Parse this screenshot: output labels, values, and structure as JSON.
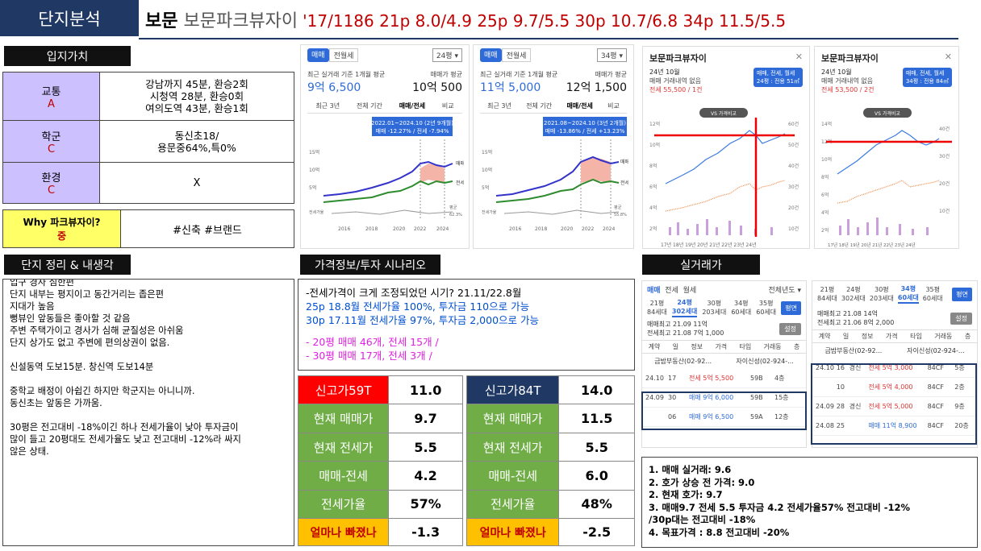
{
  "header": {
    "tag": "단지분석",
    "region": "보문",
    "complex": "보문파크뷰자이",
    "year_units": "'17/1186",
    "summary": "'17/1186 21p 8.0/4.9 25p 9.7/5.5 30p 10.7/6.8 34p 11.5/5.5"
  },
  "location": {
    "title": "입지가치",
    "rows": [
      {
        "label": "교통",
        "grade": "A",
        "lines": [
          "강남까지 45분, 환승2회",
          "시청역 28분, 환승0회",
          "여의도역 43분, 환승1회"
        ]
      },
      {
        "label": "학군",
        "grade": "C",
        "lines": [
          "동신초18/",
          "용문중64%,특0%"
        ]
      },
      {
        "label": "환경",
        "grade": "C",
        "lines": [
          "X"
        ]
      }
    ],
    "why": {
      "label": "Why 파크뷰자이?",
      "grade": "중",
      "value": "#신축 #브랜드"
    }
  },
  "notes": {
    "title": "단지 정리 & 내생각",
    "lines": [
      "입구 경사 심한편",
      "단지 내부는 평지이고 동간거리는 좁은편",
      "지대가 높음",
      "뻥뷰인 앞동들은 좋아할 것 같음",
      "주변 주택가이고 경사가 심해 균질성은 아쉬움",
      "단지 상가도 없고 주변에 편의상권이 없음.",
      "",
      "신설동역 도보15분. 창신역 도보14분",
      "",
      "중학교 배정이 아쉽긴 하지만 학군지는 아니니까.",
      "동신초는 앞동은 가까움.",
      "",
      "30평은 전고대비 -18%이긴 하나 전세가율이 낮아 투자금이",
      "많이 들고 20평대도 전세가율도 낮고 전고대비 -12%라 싸지",
      "않은 상태."
    ]
  },
  "price": {
    "title": "가격정보/투자 시나리오",
    "intro": "-전세가격이 크게 조정되었던 시기? 21.11/22.8월",
    "line25": "25p 18.8월 전세가율 100%, 투자금 110으로 가능",
    "line30": "30p 17.11월 전세가율 97%, 투자금 2,000으로 가능",
    "m20": "-   20평 매매 46개, 전세 15개 /",
    "m30": "-   30평 매매 17개, 전세 3개 /"
  },
  "table59": [
    {
      "label": "신고가59T",
      "value": "11.0"
    },
    {
      "label": "현재 매매가",
      "value": "9.7"
    },
    {
      "label": "현재 전세가",
      "value": "5.5"
    },
    {
      "label": "매매-전세",
      "value": "4.2"
    },
    {
      "label": "전세가율",
      "value": "57%"
    },
    {
      "label": "얼마나 빠졌나",
      "value": "-1.3"
    }
  ],
  "table84": [
    {
      "label": "신고가84T",
      "value": "14.0"
    },
    {
      "label": "현재 매매가",
      "value": "11.5"
    },
    {
      "label": "현재 전세가",
      "value": "5.5"
    },
    {
      "label": "매매-전세",
      "value": "6.0"
    },
    {
      "label": "전세가율",
      "value": "48%"
    },
    {
      "label": "얼마나 빠졌나",
      "value": "-2.5"
    }
  ],
  "colors": {
    "navy": "#1f3864",
    "green": "#70ad47",
    "red": "#ff0000",
    "yellow": "#ffc000",
    "purple": "#ccc0ff",
    "whyyellow": "#ffff66"
  },
  "chart1": {
    "tab1": "매매",
    "tab2": "전월세",
    "size": "24평",
    "avg_label": "최근 실거래 기준 1개월 평균",
    "price": "9억 6,500",
    "avg2": "매매가 평균",
    "price2": "10억 500",
    "tabs": [
      "최근 3년",
      "전체 기간",
      "매매/전세",
      "비교"
    ],
    "tip1": "2022.01~2024.10 (2년 9개월)",
    "tip2": "매매 -12.27% / 전세 -7.94%",
    "leg_a": "매매",
    "leg_b": "전세",
    "yticks": [
      "15억",
      "10억",
      "5억"
    ],
    "xticks": [
      "2016",
      "2018",
      "2020",
      "2022",
      "2024"
    ],
    "jeonse": "전세가율",
    "ratio_lbl": "평균",
    "ratio": "62.3%"
  },
  "chart2": {
    "tab1": "매매",
    "tab2": "전월세",
    "size": "34평",
    "avg_label": "최근 실거래 기준 1개월 평균",
    "price": "11억 5,000",
    "avg2": "매매가 평균",
    "price2": "12억 1,500",
    "tabs": [
      "최근 3년",
      "전체 기간",
      "매매/전세",
      "비교"
    ],
    "tip1": "2021.08~2024.10 (3년 2개월)",
    "tip2": "매매 -13.86% / 전세 +13.23%",
    "leg_a": "매매",
    "leg_b": "전세",
    "yticks": [
      "15억",
      "10억",
      "5억"
    ],
    "xticks": [
      "2016",
      "2018",
      "2020",
      "2022",
      "2024"
    ],
    "jeonse": "전세가율",
    "ratio_lbl": "평균",
    "ratio": "55.8%"
  },
  "chart3": {
    "name": "보문파크뷰자이",
    "month": "24년 10월",
    "sub": "매매 거래내역 없음",
    "jeonse": "전세 55,500 / 1건",
    "pill1": "매매, 전세, 월세",
    "pill2": "24평 : 전용 51㎡",
    "vs": "VS 가격비교",
    "yl": [
      "12억",
      "10억",
      "8억",
      "6억",
      "4억",
      "2억"
    ],
    "yr": [
      "60건",
      "50건",
      "40건",
      "30건",
      "20건",
      "10건"
    ],
    "xt": "17년 18년 19년 20년 21년 22년 23년 24년"
  },
  "chart4": {
    "name": "보문파크뷰자이",
    "month": "24년 10월",
    "sub": "매매 거래내역 없음",
    "jeonse": "전세 53,500 / 2건",
    "pill1": "매매, 전세, 월세",
    "pill2": "34평 : 전용 84㎡",
    "vs": "VS 가격비교",
    "yl": [
      "14억",
      "12억",
      "10억",
      "8억",
      "6억",
      "4억",
      "2억"
    ],
    "yr": [
      "40건",
      "30건",
      "20건",
      "10건"
    ],
    "xt": "17년 18년 19년 20년 21년 22년 23년 24년"
  },
  "real": {
    "title": "실거래가",
    "a": {
      "tabs": [
        "매매",
        "전세",
        "월세"
      ],
      "year": "전체년도",
      "sizes": [
        "21평",
        "24평",
        "30평",
        "34평",
        "35평"
      ],
      "sub": [
        "84세대",
        "302세대",
        "203세대",
        "60세대",
        "60세대"
      ],
      "btn": "평면",
      "h1": "매매최고 21.09 11억",
      "h2": "전세최고 21.08 7억 1,000",
      "save": "설정",
      "cols": [
        "계약",
        "일",
        "정보",
        "가격",
        "타입",
        "거래동",
        "층"
      ],
      "agent1": "금밤부동산(02-92...",
      "agent2": "자이신성(02-924-...",
      "rows": [
        [
          "24.10",
          "17",
          "전세 5억 5,500",
          "59B",
          "4층"
        ],
        [
          "24.09",
          "30",
          "매매 9억 6,000",
          "59B",
          "15층"
        ],
        [
          "",
          "06",
          "매매 9억 6,500",
          "59A",
          "12층"
        ]
      ]
    },
    "b": {
      "sizes": [
        "21평",
        "24평",
        "30평",
        "34평",
        "35평"
      ],
      "sub": [
        "84세대",
        "302세대",
        "203세대",
        "60세대",
        "60세대"
      ],
      "btn": "평면",
      "h1": "매매최고 21.08 14억",
      "h2": "전세최고 21.06 8억 2,000",
      "save": "설정",
      "cols": [
        "계약",
        "일",
        "정보",
        "가격",
        "타입",
        "거래동",
        "층"
      ],
      "agent1": "금밤부동산(02-92...",
      "agent2": "자이신성(02-924-...",
      "rows": [
        [
          "24.10",
          "16",
          "경신",
          "전세 5억 3,000",
          "84CF",
          "5층"
        ],
        [
          "",
          "10",
          "",
          "전세 5억 4,000",
          "84CF",
          "2층"
        ],
        [
          "24.09",
          "28",
          "경신",
          "전세 5억 5,000",
          "84CF",
          "9층"
        ],
        [
          "24.08",
          "25",
          "",
          "매매 11억 8,900",
          "84CF",
          "20층"
        ]
      ]
    },
    "summary": [
      "1. 매매 실거래: 9.6",
      "2. 호가 상승 전 가격: 9.0",
      "2. 현재 호가: 9.7",
      "3. 매매9.7 전세 5.5 투자금 4.2 전세가율57%  전고대비 -12%",
      "/30p대는 전고대비 -18%",
      "4. 목표가격 : 8.8 전고대비 -20%"
    ]
  }
}
